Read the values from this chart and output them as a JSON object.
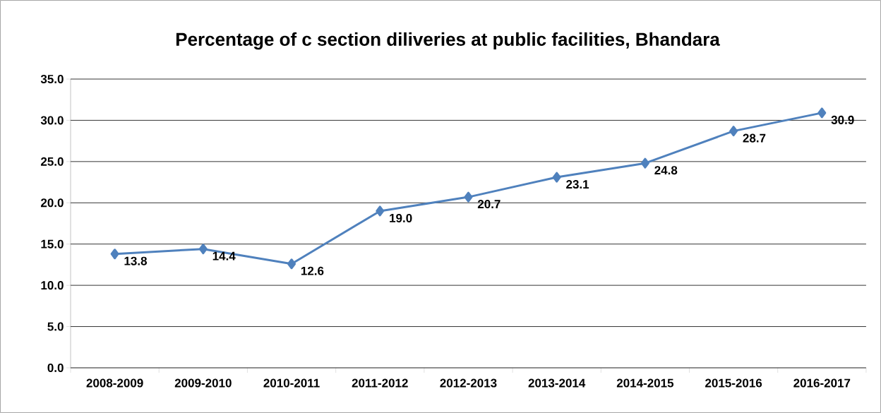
{
  "chart_data": {
    "type": "line",
    "title": "Percentage of c section diliveries at public facilities, Bhandara",
    "categories": [
      "2008-2009",
      "2009-2010",
      "2010-2011",
      "2011-2012",
      "2012-2013",
      "2013-2014",
      "2014-2015",
      "2015-2016",
      "2016-2017"
    ],
    "values": [
      13.8,
      14.4,
      12.6,
      19.0,
      20.7,
      23.1,
      24.8,
      28.7,
      30.9
    ],
    "value_labels": [
      "13.8",
      "14.4",
      "12.6",
      "19.0",
      "20.7",
      "23.1",
      "24.8",
      "28.7",
      "30.9"
    ],
    "color": "#4f81bd",
    "marker": "diamond",
    "line_style": "solid",
    "grid": "y",
    "ylim": [
      0,
      35
    ],
    "yticks": [
      {
        "value": 0,
        "label": "0.0"
      },
      {
        "value": 5,
        "label": "5.0"
      },
      {
        "value": 10,
        "label": "10.0"
      },
      {
        "value": 15,
        "label": "15.0"
      },
      {
        "value": 20,
        "label": "20.0"
      },
      {
        "value": 25,
        "label": "25.0"
      },
      {
        "value": 30,
        "label": "30.0"
      },
      {
        "value": 35,
        "label": "35.0"
      }
    ]
  }
}
